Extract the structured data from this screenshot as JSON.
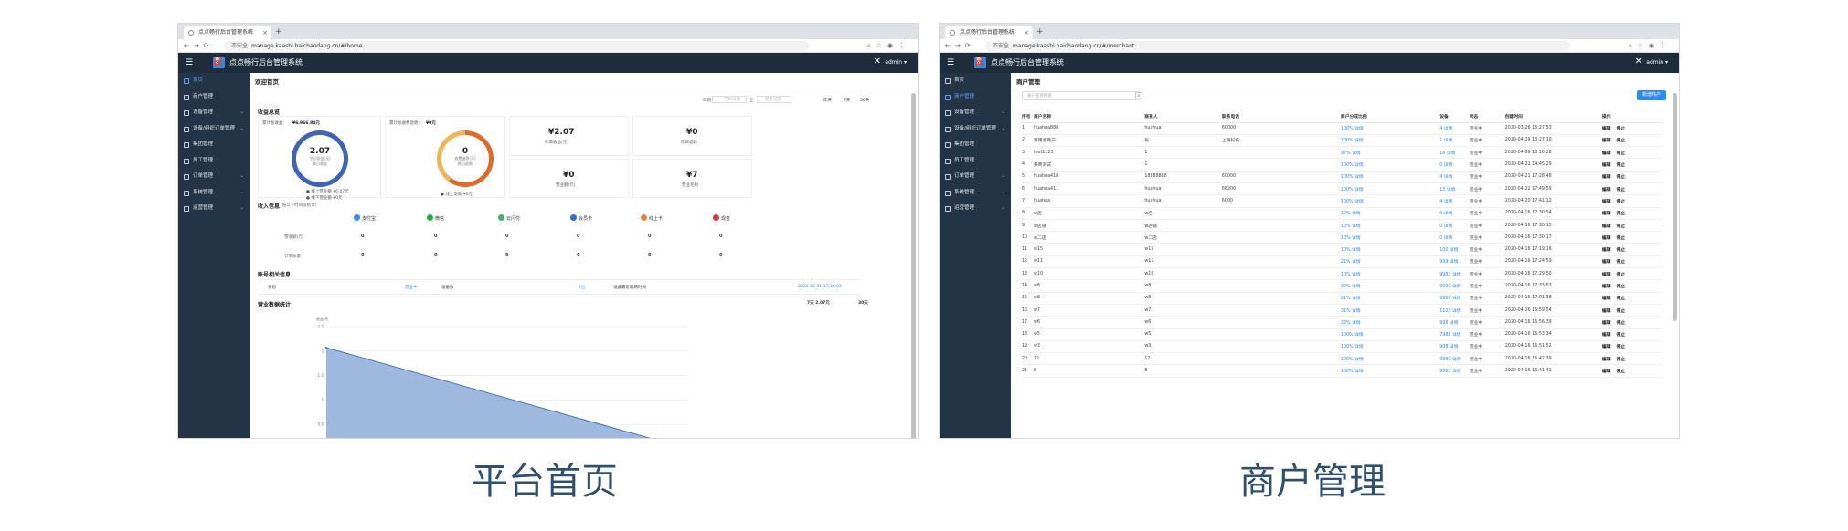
{
  "browser": {
    "tab_title": "点点畅行后台管理系统",
    "insecure": "不安全",
    "url_home": "manage.kaashi.haichaodang.cn/#/home",
    "url_merchant": "manage.kaashi.haichaodang.cn/#/merchant"
  },
  "app": {
    "title": "点点畅行后台管理系统",
    "user": "admin ▾"
  },
  "sidebar": {
    "items": [
      {
        "label": "首页",
        "arrow": ""
      },
      {
        "label": "商户管理",
        "arrow": ""
      },
      {
        "label": "设备管理",
        "arrow": "⌄"
      },
      {
        "label": "设备/组织订单管理",
        "arrow": "⌄"
      },
      {
        "label": "集团管理",
        "arrow": ""
      },
      {
        "label": "员工管理",
        "arrow": ""
      },
      {
        "label": "订单管理",
        "arrow": "⌄"
      },
      {
        "label": "系统管理",
        "arrow": "⌄"
      },
      {
        "label": "运营管理",
        "arrow": "⌄"
      }
    ]
  },
  "home": {
    "page_title": "欢迎首页",
    "filter": {
      "label": "日期",
      "start": "开始日期",
      "sep": "至",
      "end": "结束日期",
      "opt1": "昨天",
      "opt2": "7天",
      "opt3": "30天"
    },
    "section_overview": "收益总览",
    "card1_head_label": "累计总收益:",
    "card1_head_value": "¥6,966.84元",
    "card1_ring": {
      "num": "2.07",
      "sub1": "今日收益(元)",
      "sub2": "昨日收益"
    },
    "card1_legend1": "● 线上营业额 ¥6.07元",
    "card1_legend2": "● 线下营业额 ¥0元",
    "card2_head_label": "累计总收费退款:",
    "card2_head_value": "¥0元",
    "card2_ring": {
      "num": "0",
      "sub1": "收费退款(元)",
      "sub2": "昨日退款"
    },
    "card2_legend": "● 线上退款 ¥0元",
    "card3": {
      "value": "¥2.07",
      "label": "昨日收益(元)"
    },
    "card4": {
      "value": "¥0",
      "label": "昨日退款"
    },
    "card5": {
      "value": "¥0",
      "label": "营业额(元)"
    },
    "card6": {
      "value": "¥7",
      "label": "营业毛利"
    },
    "section_income": "收入信息",
    "section_income_note": "(按以下时间段统计)",
    "channels": [
      "支付宝",
      "微信",
      "云闪付",
      "会员卡",
      "线上卡",
      "现金"
    ],
    "channel_colors": [
      "#3a8ee6",
      "#2dab3e",
      "#3fb46a",
      "#2c6ed6",
      "#e6843a",
      "#d23b3b"
    ],
    "row1_label": "营收额(元)",
    "row2_label": "订单数量",
    "zero": "0",
    "section_device": "账号相关信息",
    "dev_label1": "状态",
    "dev_val1": "营业中",
    "dev_label2": "设备数",
    "dev_val2": "7台",
    "dev_label3": "设备最近联网时间",
    "dev_val3": "2020-06-01 17:26:03",
    "section_chart": "营业数据统计",
    "chart_right1": "7天 2.07元",
    "chart_right2": "30天",
    "y_title": "收益/元"
  },
  "merchant": {
    "page_title": "商户管理",
    "search_placeholder": "商户名称搜索",
    "new_button": "新增商户",
    "columns": [
      "序号",
      "商户名称",
      "联系人",
      "联系电话",
      "商户分成比例",
      "设备",
      "状态",
      "创建时间",
      "操作"
    ],
    "rows": [
      [
        "1",
        "huahua888",
        "huahua",
        "60000",
        "100% 详情",
        "4 详情",
        "营业中",
        "2020-03-26 16:27:53"
      ],
      [
        "2",
        "费用收商户",
        "张",
        "上海科技",
        "100% 详情",
        "1 详情",
        "营业中",
        "2020-04-29 13:27:10"
      ],
      [
        "3",
        "test1123",
        "1",
        "",
        "97% 详情",
        "16 详情",
        "营业中",
        "2020-04-09 18:16:28"
      ],
      [
        "4",
        "券商测试",
        "1",
        "",
        "100% 详情",
        "0 详情",
        "营业中",
        "2020-04-22 14:45:29"
      ],
      [
        "5",
        "huahua418",
        "18888888",
        "60000",
        "100% 详情",
        "4 详情",
        "营业中",
        "2020-04-21 17:28:48"
      ],
      [
        "6",
        "huahua411",
        "huahua",
        "66200",
        "100% 详情",
        "13 详情",
        "营业中",
        "2020-04-22 17:49:59"
      ],
      [
        "7",
        "huahua",
        "huahua",
        "6000",
        "100% 详情",
        "4 详情",
        "营业中",
        "2020-04-20 17:41:12"
      ],
      [
        "8",
        "w店",
        "w店",
        "",
        "10% 详情",
        "0 详情",
        "营业中",
        "2020-04-16 17:30:54"
      ],
      [
        "9",
        "w店铺",
        "w店铺",
        "",
        "10% 详情",
        "0 详情",
        "营业中",
        "2020-04-16 17:30:15"
      ],
      [
        "10",
        "w二店",
        "w二店",
        "",
        "10% 详情",
        "0 详情",
        "营业中",
        "2020-04-16 17:30:17"
      ],
      [
        "11",
        "w15",
        "w15",
        "",
        "10% 详情",
        "100 详情",
        "营业中",
        "2020-04-16 17:19:16"
      ],
      [
        "12",
        "w11",
        "w11",
        "",
        "21% 详情",
        "999 详情",
        "营业中",
        "2020-04-16 17:24:59"
      ],
      [
        "13",
        "w10",
        "w10",
        "",
        "10% 详情",
        "9983 详情",
        "营业中",
        "2020-04-16 17:29:50"
      ],
      [
        "14",
        "w8",
        "w8",
        "",
        "30% 详情",
        "9993 详情",
        "营业中",
        "2020-04-16 17:33:53"
      ],
      [
        "15",
        "w8",
        "w8",
        "",
        "21% 详情",
        "9960 详情",
        "营业中",
        "2020-04-16 17:01:38"
      ],
      [
        "16",
        "w7",
        "w7",
        "",
        "31% 详情",
        "1103 详情",
        "营业中",
        "2020-04-16 16:59:54"
      ],
      [
        "17",
        "w6",
        "w6",
        "",
        "33% 详情",
        "998 详情",
        "营业中",
        "2020-04-16 16:56:39"
      ],
      [
        "18",
        "w5",
        "w5",
        "",
        "100% 详情",
        "7988 详情",
        "营业中",
        "2020-04-16 16:53:34"
      ],
      [
        "19",
        "w3",
        "w3",
        "",
        "100% 详情",
        "908 详情",
        "营业中",
        "2020-04-16 16:51:52"
      ],
      [
        "20",
        "12",
        "12",
        "",
        "100% 详情",
        "9983 详情",
        "营业中",
        "2020-04-16 16:42:39"
      ],
      [
        "21",
        "8",
        "8",
        "",
        "100% 详情",
        "9983 详情",
        "营业中",
        "2020-04-16 16:41:41"
      ]
    ],
    "ops": {
      "edit": "编辑",
      "stop": "停止"
    }
  },
  "captions": {
    "left": "平台首页",
    "right": "商户管理"
  },
  "chart_data": {
    "type": "area",
    "x": [
      "d1",
      "d2"
    ],
    "series": [
      {
        "values": [
          2.07,
          0
        ]
      }
    ],
    "ylabel": "收益/元",
    "ylim": [
      0,
      2.5
    ]
  }
}
